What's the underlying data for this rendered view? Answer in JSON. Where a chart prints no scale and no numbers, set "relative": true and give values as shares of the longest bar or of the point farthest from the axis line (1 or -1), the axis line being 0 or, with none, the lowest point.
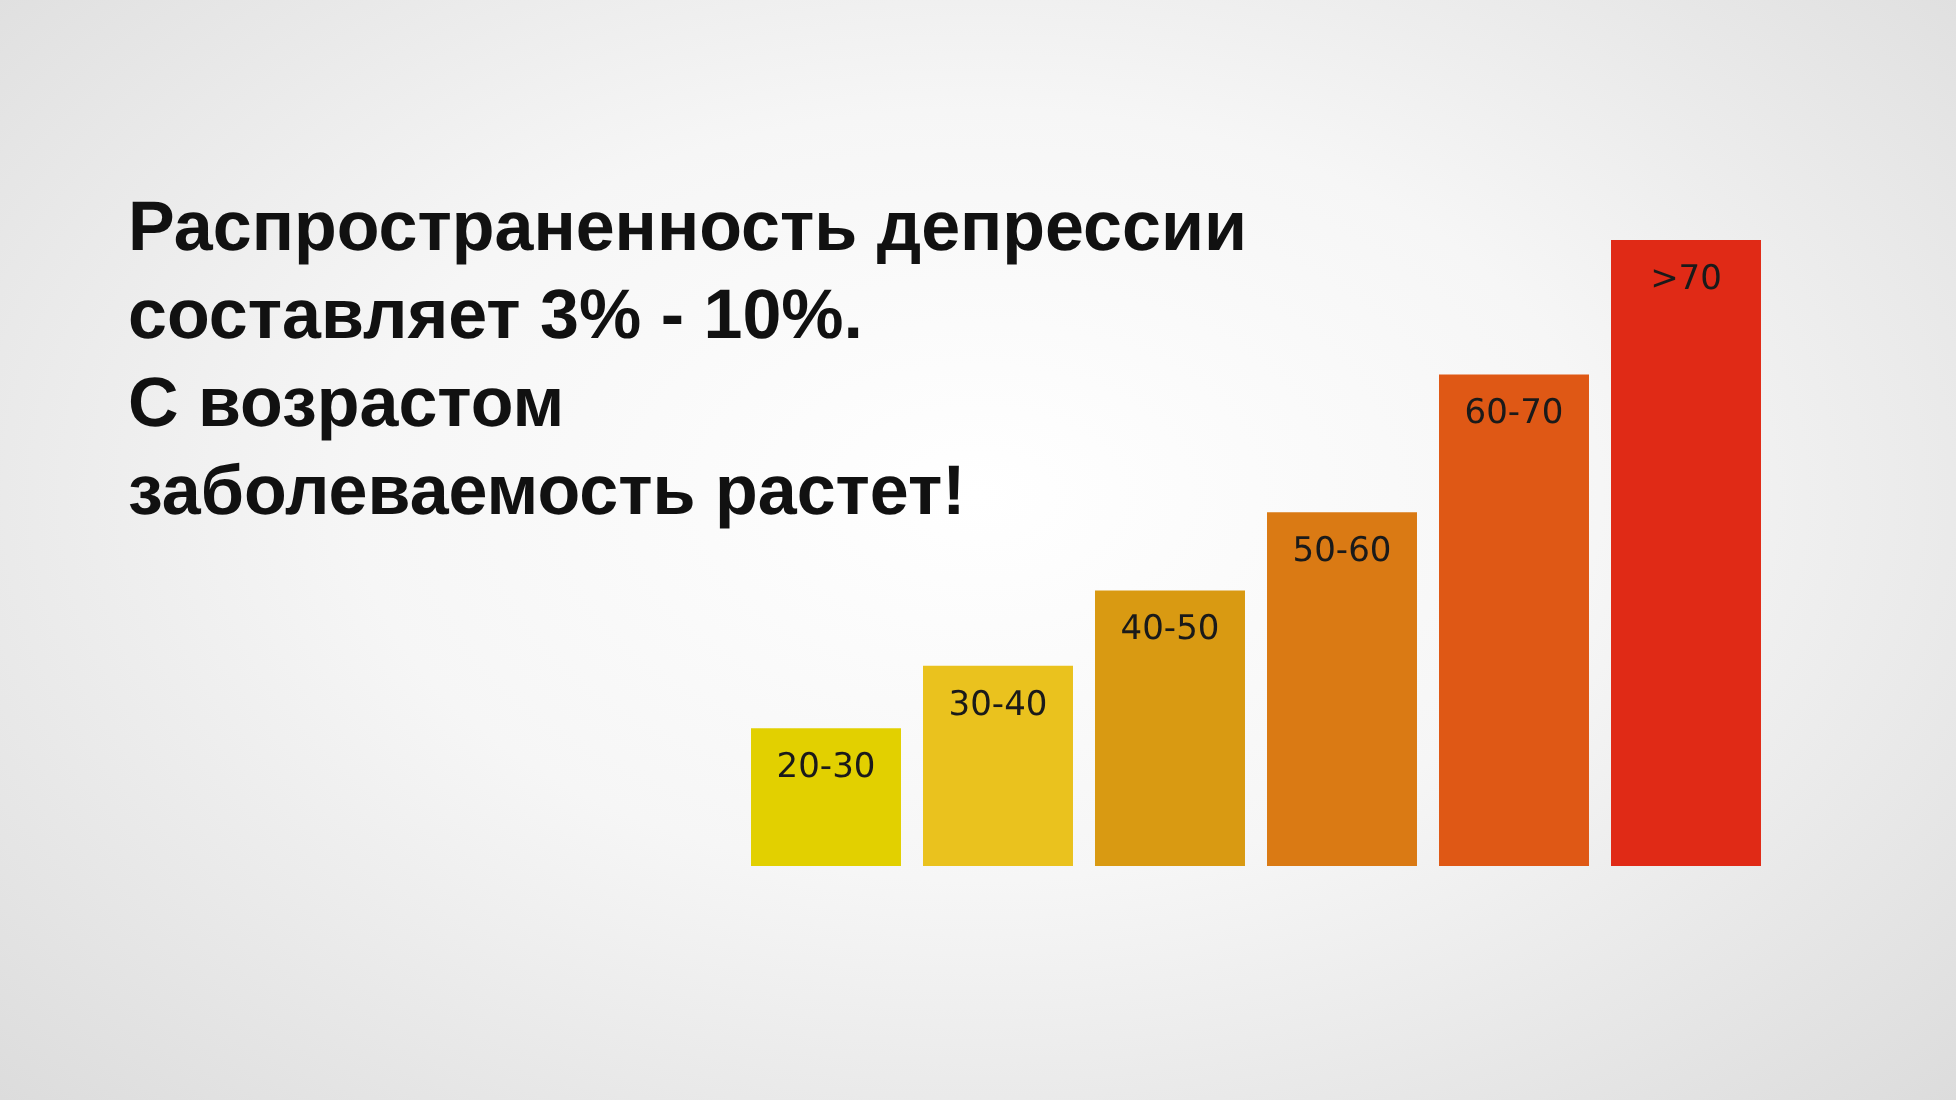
{
  "chart_data": {
    "type": "bar",
    "title": "Распространенность депрессии составляет  3% - 10%.",
    "subtitle": "С возрастом заболеваемость растет!",
    "categories": [
      "20-30",
      "30-40",
      "40-50",
      "50-60",
      "60-70",
      ">70"
    ],
    "values": [
      0.22,
      0.32,
      0.44,
      0.565,
      0.785,
      1
    ],
    "colors": [
      "#e2d000",
      "#eac21e",
      "#d99a12",
      "#da7a14",
      "#df5815",
      "#e02a16"
    ],
    "relative": true
  }
}
